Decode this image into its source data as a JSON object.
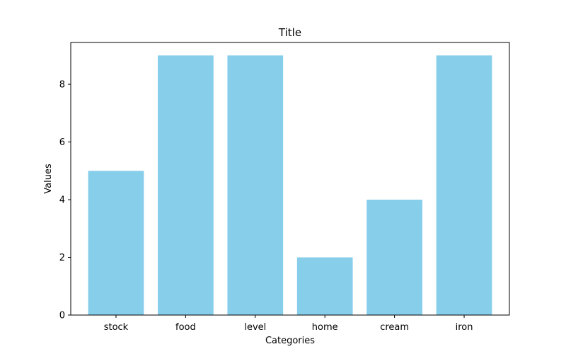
{
  "chart_data": {
    "type": "bar",
    "title": "Title",
    "xlabel": "Categories",
    "ylabel": "Values",
    "categories": [
      "stock",
      "food",
      "level",
      "home",
      "cream",
      "iron"
    ],
    "values": [
      5,
      9,
      9,
      2,
      4,
      9
    ],
    "ylim": [
      0,
      9.45
    ],
    "yticks": [
      0,
      2,
      4,
      6,
      8
    ],
    "bar_color": "#87ceeb",
    "grid": false,
    "legend": "none"
  }
}
